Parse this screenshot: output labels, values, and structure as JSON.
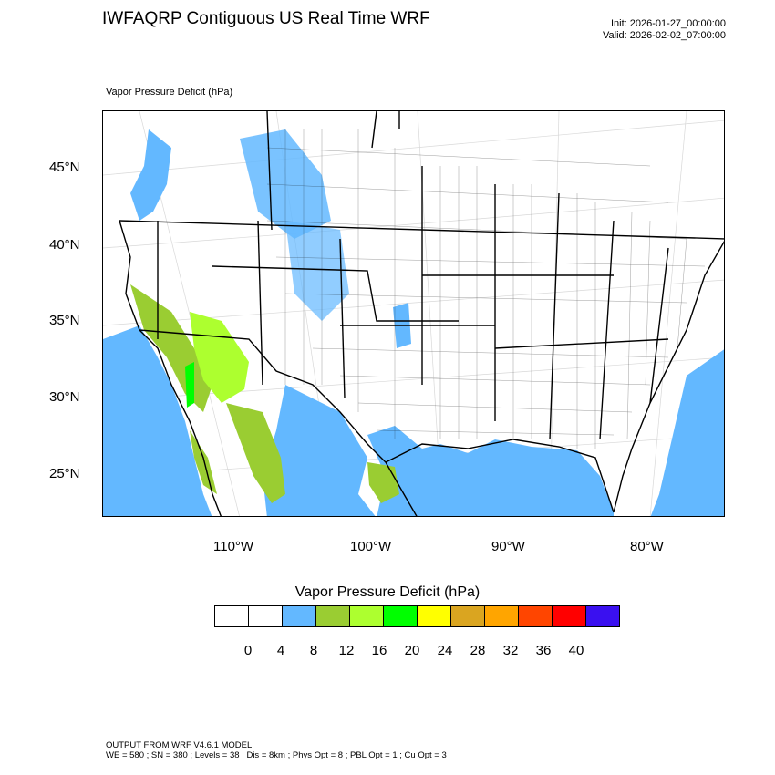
{
  "title": "IWFAQRP Contiguous US Real Time WRF",
  "init_time": "Init: 2026-01-27_00:00:00",
  "valid_time": "Valid: 2026-02-02_07:00:00",
  "field_label": "Vapor Pressure Deficit   (hPa)",
  "map": {
    "lat_labels": [
      "45°N",
      "40°N",
      "35°N",
      "30°N",
      "25°N"
    ],
    "lon_labels": [
      "110°W",
      "100°W",
      "90°W",
      "80°W"
    ],
    "colors": {
      "land": "#ffffff",
      "ocean_low_vpd": "#63b8ff",
      "borders": "#000000",
      "graticule": "#d8d8d8"
    }
  },
  "colorbar": {
    "title": "Vapor Pressure Deficit  (hPa)",
    "colors": [
      "#ffffff",
      "#ffffff",
      "#63b8ff",
      "#9acd32",
      "#adff2f",
      "#00ff00",
      "#ffff00",
      "#daa520",
      "#ffa500",
      "#ff4500",
      "#ff0000",
      "#3a10f0"
    ],
    "ticks": [
      "0",
      "4",
      "8",
      "12",
      "16",
      "20",
      "24",
      "28",
      "32",
      "36",
      "40"
    ]
  },
  "footer": {
    "line1": "OUTPUT FROM WRF V4.6.1 MODEL",
    "line2": "WE = 580 ; SN = 380 ; Levels = 38 ; Dis = 8km ; Phys Opt = 8 ; PBL Opt = 1 ; Cu Opt = 3"
  }
}
